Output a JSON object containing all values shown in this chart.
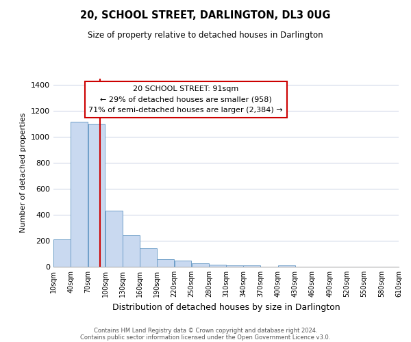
{
  "title": "20, SCHOOL STREET, DARLINGTON, DL3 0UG",
  "subtitle": "Size of property relative to detached houses in Darlington",
  "xlabel": "Distribution of detached houses by size in Darlington",
  "ylabel": "Number of detached properties",
  "footer_line1": "Contains HM Land Registry data © Crown copyright and database right 2024.",
  "footer_line2": "Contains public sector information licensed under the Open Government Licence v3.0.",
  "annotation_line1": "20 SCHOOL STREET: 91sqm",
  "annotation_line2": "← 29% of detached houses are smaller (958)",
  "annotation_line3": "71% of semi-detached houses are larger (2,384) →",
  "bar_left_edges": [
    10,
    40,
    70,
    100,
    130,
    160,
    190,
    220,
    250,
    280,
    310,
    340,
    370,
    400,
    430,
    460,
    490,
    520,
    550,
    580
  ],
  "bar_widths": [
    30,
    30,
    30,
    30,
    30,
    30,
    30,
    30,
    30,
    30,
    30,
    30,
    30,
    30,
    30,
    30,
    30,
    30,
    30,
    30
  ],
  "bar_heights": [
    210,
    1120,
    1100,
    430,
    240,
    140,
    60,
    50,
    25,
    15,
    10,
    10,
    0,
    10,
    0,
    0,
    0,
    0,
    0,
    0
  ],
  "bar_color": "#c9d9f0",
  "bar_edge_color": "#6e9ec8",
  "vline_x": 91,
  "vline_color": "#cc0000",
  "annotation_box_edge_color": "#cc0000",
  "annotation_box_face_color": "#ffffff",
  "tick_labels": [
    "10sqm",
    "40sqm",
    "70sqm",
    "100sqm",
    "130sqm",
    "160sqm",
    "190sqm",
    "220sqm",
    "250sqm",
    "280sqm",
    "310sqm",
    "340sqm",
    "370sqm",
    "400sqm",
    "430sqm",
    "460sqm",
    "490sqm",
    "520sqm",
    "550sqm",
    "580sqm",
    "610sqm"
  ],
  "ylim": [
    0,
    1450
  ],
  "xlim": [
    10,
    610
  ],
  "yticks": [
    0,
    200,
    400,
    600,
    800,
    1000,
    1200,
    1400
  ],
  "background_color": "#ffffff",
  "grid_color": "#d0d8e8"
}
